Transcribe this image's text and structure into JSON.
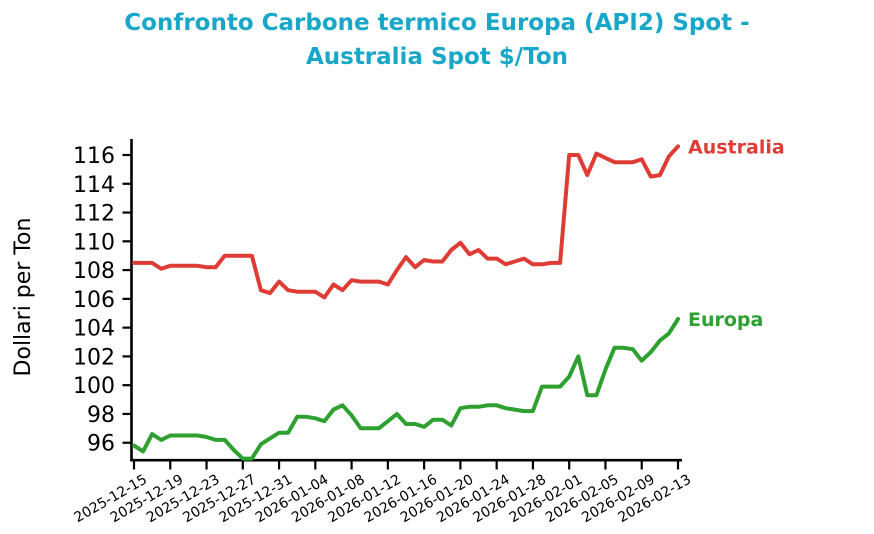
{
  "title_lines": [
    "Confronto Carbone termico Europa (API2) Spot -",
    "Australia Spot $/Ton"
  ],
  "colors": {
    "title": "#18a7c8",
    "axis": "#000000",
    "australia": "#df3c35",
    "europa": "#2da02f"
  },
  "chart_data": {
    "type": "line",
    "title": "Confronto Carbone termico Europa (API2) Spot - Australia Spot $/Ton",
    "xlabel": "",
    "ylabel": "Dollari per Ton",
    "ylim": [
      94.8,
      117.1
    ],
    "y_ticks": [
      96,
      98,
      100,
      102,
      104,
      106,
      108,
      110,
      112,
      114,
      116
    ],
    "grid": false,
    "legend_position": "line-end-labels",
    "x_tick_labels": [
      "2025-12-15",
      "2025-12-19",
      "2025-12-23",
      "2025-12-27",
      "2025-12-31",
      "2026-01-04",
      "2026-01-08",
      "2026-01-12",
      "2026-01-16",
      "2026-01-20",
      "2026-01-24",
      "2026-01-28",
      "2026-02-01",
      "2026-02-05",
      "2026-02-09",
      "2026-02-13"
    ],
    "x_tick_step": 4,
    "x": [
      "2025-12-15",
      "2025-12-16",
      "2025-12-17",
      "2025-12-18",
      "2025-12-19",
      "2025-12-20",
      "2025-12-21",
      "2025-12-22",
      "2025-12-23",
      "2025-12-24",
      "2025-12-25",
      "2025-12-26",
      "2025-12-27",
      "2025-12-28",
      "2025-12-29",
      "2025-12-30",
      "2025-12-31",
      "2026-01-01",
      "2026-01-02",
      "2026-01-03",
      "2026-01-04",
      "2026-01-05",
      "2026-01-06",
      "2026-01-07",
      "2026-01-08",
      "2026-01-09",
      "2026-01-10",
      "2026-01-11",
      "2026-01-12",
      "2026-01-13",
      "2026-01-14",
      "2026-01-15",
      "2026-01-16",
      "2026-01-17",
      "2026-01-18",
      "2026-01-19",
      "2026-01-20",
      "2026-01-21",
      "2026-01-22",
      "2026-01-23",
      "2026-01-24",
      "2026-01-25",
      "2026-01-26",
      "2026-01-27",
      "2026-01-28",
      "2026-01-29",
      "2026-01-30",
      "2026-01-31",
      "2026-02-01",
      "2026-02-02",
      "2026-02-03",
      "2026-02-04",
      "2026-02-05",
      "2026-02-06",
      "2026-02-07",
      "2026-02-08",
      "2026-02-09",
      "2026-02-10",
      "2026-02-11",
      "2026-02-12",
      "2026-02-13"
    ],
    "series": [
      {
        "name": "Australia",
        "color": "#df3c35",
        "values": [
          108.5,
          108.5,
          108.5,
          108.1,
          108.3,
          108.3,
          108.3,
          108.3,
          108.2,
          108.2,
          109.0,
          109.0,
          109.0,
          109.0,
          106.6,
          106.4,
          107.2,
          106.6,
          106.5,
          106.5,
          106.5,
          106.1,
          107.0,
          106.6,
          107.3,
          107.2,
          107.2,
          107.2,
          107.0,
          108.0,
          108.9,
          108.2,
          108.7,
          108.6,
          108.6,
          109.4,
          109.9,
          109.1,
          109.4,
          108.8,
          108.8,
          108.4,
          108.6,
          108.8,
          108.4,
          108.4,
          108.5,
          108.5,
          116.0,
          116.0,
          114.6,
          116.1,
          115.8,
          115.5,
          115.5,
          115.5,
          115.7,
          114.5,
          114.6,
          115.9,
          116.6
        ]
      },
      {
        "name": "Europa",
        "color": "#2da02f",
        "values": [
          95.8,
          95.4,
          96.6,
          96.2,
          96.5,
          96.5,
          96.5,
          96.5,
          96.4,
          96.2,
          96.2,
          95.5,
          94.9,
          94.9,
          95.9,
          96.3,
          96.7,
          96.7,
          97.8,
          97.8,
          97.7,
          97.5,
          98.3,
          98.6,
          97.9,
          97.0,
          97.0,
          97.0,
          97.5,
          98.0,
          97.3,
          97.3,
          97.1,
          97.6,
          97.6,
          97.2,
          98.4,
          98.5,
          98.5,
          98.6,
          98.6,
          98.4,
          98.3,
          98.2,
          98.2,
          99.9,
          99.9,
          99.9,
          100.6,
          102.0,
          99.3,
          99.3,
          101.1,
          102.6,
          102.6,
          102.5,
          101.7,
          102.3,
          103.1,
          103.6,
          104.6
        ]
      }
    ]
  }
}
